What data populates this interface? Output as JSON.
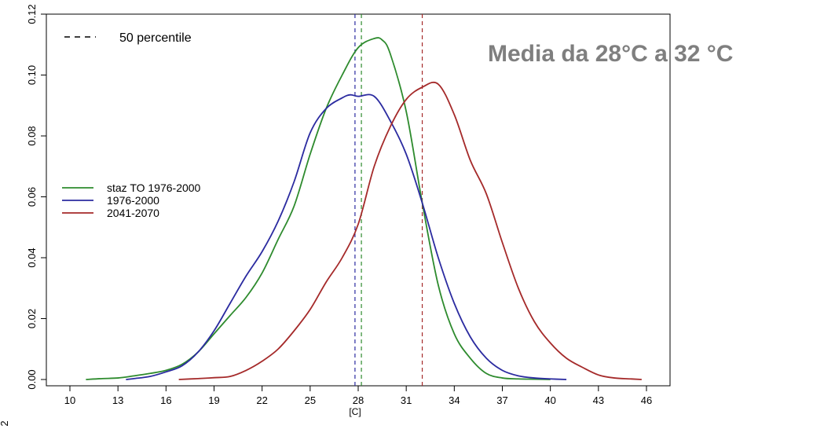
{
  "chart_data": {
    "type": "line",
    "title": "",
    "xlabel": "[C]",
    "ylabel": "",
    "xlim": [
      9,
      47
    ],
    "ylim": [
      -0.003,
      0.12
    ],
    "x_ticks": [
      10,
      13,
      16,
      19,
      22,
      25,
      28,
      31,
      34,
      37,
      40,
      43,
      46
    ],
    "y_ticks": [
      "0.00",
      "0.02",
      "0.04",
      "0.06",
      "0.08",
      "0.10",
      "0.12"
    ],
    "y_tick_values": [
      0,
      0.02,
      0.04,
      0.06,
      0.08,
      0.1,
      0.12
    ],
    "annotation": "Media da 28°C a 32 °C",
    "stray_text": "2",
    "legend": {
      "placement": "left",
      "title_line": "50 percentile",
      "entries": [
        {
          "label": "staz TO 1976-2000",
          "color": "#2e8b2e"
        },
        {
          "label": "1976-2000",
          "color": "#2b2ba0"
        },
        {
          "label": "2041-2070",
          "color": "#a52a2a"
        }
      ]
    },
    "percentiles": [
      {
        "series": "1976-2000",
        "x": 27.8,
        "color": "#2b2ba0"
      },
      {
        "series": "staz TO 1976-2000",
        "x": 28.2,
        "color": "#2e8b2e"
      },
      {
        "series": "2041-2070",
        "x": 32.0,
        "color": "#a52a2a"
      }
    ],
    "series": [
      {
        "name": "staz TO 1976-2000",
        "color": "#2e8b2e",
        "x": [
          11,
          12,
          13,
          14,
          15,
          16,
          17,
          18,
          19,
          20,
          21,
          22,
          23,
          24,
          25,
          26,
          27,
          28,
          29,
          29.5,
          30,
          31,
          32,
          33,
          34,
          35,
          36,
          37,
          38,
          39,
          40
        ],
        "y": [
          0.0,
          0.0003,
          0.0005,
          0.0012,
          0.002,
          0.003,
          0.005,
          0.009,
          0.015,
          0.021,
          0.027,
          0.035,
          0.046,
          0.057,
          0.074,
          0.089,
          0.1,
          0.109,
          0.112,
          0.1115,
          0.107,
          0.088,
          0.058,
          0.031,
          0.015,
          0.007,
          0.002,
          0.0005,
          0.0002,
          0.0001,
          0.0
        ]
      },
      {
        "name": "1976-2000",
        "color": "#2b2ba0",
        "x": [
          13.5,
          14,
          15,
          16,
          17,
          18,
          19,
          20,
          21,
          22,
          23,
          24,
          25,
          26,
          27,
          27.5,
          28,
          29,
          30,
          31,
          32,
          33,
          34,
          35,
          36,
          37,
          38,
          39,
          40,
          41
        ],
        "y": [
          0.0,
          0.0003,
          0.001,
          0.0025,
          0.0045,
          0.009,
          0.016,
          0.025,
          0.034,
          0.042,
          0.052,
          0.065,
          0.081,
          0.089,
          0.0925,
          0.0935,
          0.093,
          0.093,
          0.085,
          0.074,
          0.058,
          0.04,
          0.025,
          0.014,
          0.007,
          0.003,
          0.0012,
          0.0005,
          0.0002,
          0.0
        ]
      },
      {
        "name": "2041-2070",
        "color": "#a52a2a",
        "x": [
          16.8,
          18,
          19,
          20,
          21,
          22,
          23,
          24,
          25,
          26,
          27,
          28,
          29,
          30,
          31,
          32,
          33,
          34,
          35,
          36,
          37,
          38,
          39,
          40,
          41,
          42,
          43,
          44,
          45,
          45.7
        ],
        "y": [
          0.0,
          0.0003,
          0.0006,
          0.001,
          0.003,
          0.006,
          0.01,
          0.016,
          0.023,
          0.032,
          0.04,
          0.051,
          0.07,
          0.083,
          0.092,
          0.096,
          0.097,
          0.087,
          0.072,
          0.061,
          0.045,
          0.03,
          0.019,
          0.012,
          0.007,
          0.004,
          0.0015,
          0.0005,
          0.0002,
          0.0
        ]
      }
    ]
  }
}
